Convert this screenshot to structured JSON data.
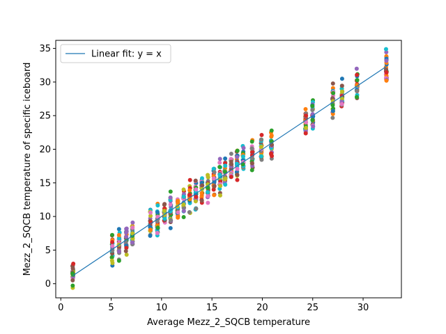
{
  "chart_data": {
    "type": "scatter",
    "title": "",
    "xlabel": "Average Mezz_2_SQCB temperature",
    "ylabel": "Mezz_2_SQCB temperature of specific iceboard",
    "xlim": [
      -0.5,
      33.8
    ],
    "ylim": [
      -2.1,
      36.2
    ],
    "xticks": [
      0,
      5,
      10,
      15,
      20,
      25,
      30
    ],
    "yticks": [
      0,
      5,
      10,
      15,
      20,
      25,
      30,
      35
    ],
    "grid": false,
    "legend": {
      "placement": "top-left",
      "entries": [
        "Linear fit: y = x"
      ]
    },
    "fit_line": {
      "label": "Linear fit: y = x",
      "x": [
        1.2,
        32.3
      ],
      "y": [
        1.2,
        32.3
      ],
      "color": "#1f77b4"
    },
    "x_clusters": [
      1.2,
      5.1,
      5.8,
      6.5,
      7.1,
      8.9,
      9.6,
      10.3,
      10.9,
      11.6,
      12.2,
      12.8,
      13.4,
      14.0,
      14.6,
      15.2,
      15.8,
      16.3,
      16.9,
      17.5,
      18.1,
      19.0,
      19.9,
      20.9,
      24.3,
      25.0,
      27.0,
      27.9,
      29.4,
      32.3
    ],
    "cluster_spread": 3.2,
    "series_colors": [
      "#1f77b4",
      "#ff7f0e",
      "#2ca02c",
      "#d62728",
      "#9467bd",
      "#8c564b",
      "#e377c2",
      "#7f7f7f",
      "#bcbd22",
      "#17becf"
    ]
  }
}
